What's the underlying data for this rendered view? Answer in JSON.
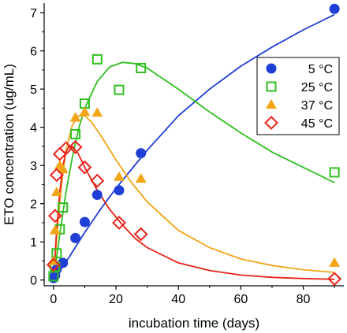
{
  "chart_data": {
    "type": "scatter",
    "xlabel": "incubation time (days)",
    "ylabel": "ETO concentration (ug/mL)",
    "xlim": [
      -3,
      93
    ],
    "ylim": [
      -0.15,
      7.25
    ],
    "x_ticks": [
      0,
      20,
      40,
      60,
      80
    ],
    "x_tick_labels": [
      "0",
      "20",
      "40",
      "60",
      "80"
    ],
    "y_ticks": [
      0,
      1,
      2,
      3,
      4,
      5,
      6,
      7
    ],
    "y_tick_labels": [
      "0",
      "1",
      "2",
      "3",
      "4",
      "5",
      "6",
      "7"
    ],
    "grid": false,
    "legend_position": "top-right",
    "series": [
      {
        "name": "5 °C",
        "color": "#1f3fd6",
        "marker": "filled-circle",
        "points": [
          [
            0,
            0.05
          ],
          [
            0.5,
            0.12
          ],
          [
            1,
            0.28
          ],
          [
            3,
            0.45
          ],
          [
            7,
            1.1
          ],
          [
            10,
            1.52
          ],
          [
            14,
            2.23
          ],
          [
            21,
            2.35
          ],
          [
            28,
            3.32
          ],
          [
            90,
            7.1
          ]
        ],
        "fit_curve": [
          [
            0,
            0.0
          ],
          [
            5,
            0.6
          ],
          [
            10,
            1.25
          ],
          [
            15,
            1.85
          ],
          [
            20,
            2.4
          ],
          [
            25,
            2.9
          ],
          [
            30,
            3.4
          ],
          [
            40,
            4.3
          ],
          [
            50,
            5.0
          ],
          [
            60,
            5.6
          ],
          [
            70,
            6.1
          ],
          [
            80,
            6.55
          ],
          [
            90,
            6.95
          ]
        ]
      },
      {
        "name": "25 °C",
        "color": "#2fbf1f",
        "marker": "open-square",
        "points": [
          [
            0,
            0.1
          ],
          [
            0.5,
            0.35
          ],
          [
            1,
            0.7
          ],
          [
            2,
            1.33
          ],
          [
            3,
            1.9
          ],
          [
            7,
            3.82
          ],
          [
            10,
            4.62
          ],
          [
            14,
            5.78
          ],
          [
            21,
            4.98
          ],
          [
            28,
            5.55
          ],
          [
            90,
            2.82
          ]
        ],
        "fit_curve": [
          [
            0,
            0.0
          ],
          [
            2,
            1.2
          ],
          [
            4,
            2.3
          ],
          [
            6,
            3.2
          ],
          [
            8,
            3.95
          ],
          [
            10,
            4.5
          ],
          [
            14,
            5.2
          ],
          [
            18,
            5.58
          ],
          [
            22,
            5.7
          ],
          [
            26,
            5.67
          ],
          [
            30,
            5.55
          ],
          [
            40,
            5.0
          ],
          [
            50,
            4.4
          ],
          [
            60,
            3.85
          ],
          [
            70,
            3.35
          ],
          [
            80,
            2.95
          ],
          [
            90,
            2.55
          ]
        ]
      },
      {
        "name": "37 °C",
        "color": "#f2a516",
        "marker": "filled-triangle",
        "points": [
          [
            0,
            0.5
          ],
          [
            0.5,
            1.3
          ],
          [
            1,
            2.3
          ],
          [
            2,
            3.0
          ],
          [
            3,
            2.9
          ],
          [
            7,
            4.25
          ],
          [
            10,
            4.4
          ],
          [
            14,
            4.38
          ],
          [
            21,
            2.7
          ],
          [
            28,
            2.65
          ],
          [
            90,
            0.45
          ]
        ],
        "fit_curve": [
          [
            0,
            0.0
          ],
          [
            1,
            1.1
          ],
          [
            2,
            2.05
          ],
          [
            3,
            2.8
          ],
          [
            4,
            3.4
          ],
          [
            6,
            4.05
          ],
          [
            8,
            4.3
          ],
          [
            10,
            4.3
          ],
          [
            12,
            4.15
          ],
          [
            15,
            3.8
          ],
          [
            20,
            3.15
          ],
          [
            25,
            2.55
          ],
          [
            30,
            2.05
          ],
          [
            40,
            1.3
          ],
          [
            50,
            0.85
          ],
          [
            60,
            0.55
          ],
          [
            70,
            0.38
          ],
          [
            80,
            0.27
          ],
          [
            90,
            0.2
          ]
        ]
      },
      {
        "name": "45 °C",
        "color": "#e8231a",
        "marker": "open-diamond",
        "points": [
          [
            0,
            0.4
          ],
          [
            0.5,
            1.68
          ],
          [
            1,
            2.75
          ],
          [
            2,
            3.3
          ],
          [
            4,
            3.45
          ],
          [
            7,
            3.48
          ],
          [
            10,
            2.95
          ],
          [
            14,
            2.6
          ],
          [
            21,
            1.5
          ],
          [
            28,
            1.2
          ],
          [
            90,
            0.03
          ]
        ],
        "fit_curve": [
          [
            0,
            0.0
          ],
          [
            1,
            1.3
          ],
          [
            2,
            2.3
          ],
          [
            3,
            3.0
          ],
          [
            4,
            3.35
          ],
          [
            5,
            3.5
          ],
          [
            6,
            3.5
          ],
          [
            8,
            3.3
          ],
          [
            10,
            2.95
          ],
          [
            14,
            2.35
          ],
          [
            18,
            1.85
          ],
          [
            22,
            1.45
          ],
          [
            26,
            1.1
          ],
          [
            30,
            0.85
          ],
          [
            40,
            0.45
          ],
          [
            50,
            0.25
          ],
          [
            60,
            0.13
          ],
          [
            70,
            0.07
          ],
          [
            80,
            0.04
          ],
          [
            90,
            0.02
          ]
        ]
      }
    ]
  }
}
